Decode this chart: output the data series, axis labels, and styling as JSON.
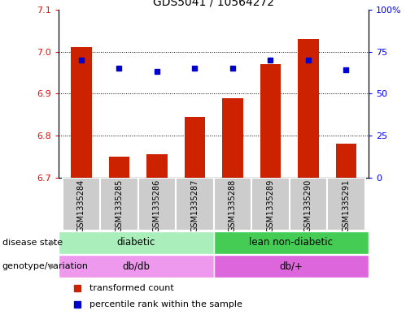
{
  "title": "GDS5041 / 10564272",
  "samples": [
    "GSM1335284",
    "GSM1335285",
    "GSM1335286",
    "GSM1335287",
    "GSM1335288",
    "GSM1335289",
    "GSM1335290",
    "GSM1335291"
  ],
  "red_values": [
    7.01,
    6.75,
    6.755,
    6.845,
    6.89,
    6.97,
    7.03,
    6.78
  ],
  "blue_percentile": [
    70,
    65,
    63,
    65,
    65,
    70,
    70,
    64
  ],
  "ylim_left": [
    6.7,
    7.1
  ],
  "ylim_right": [
    0,
    100
  ],
  "yticks_left": [
    6.7,
    6.8,
    6.9,
    7.0,
    7.1
  ],
  "yticks_right": [
    0,
    25,
    50,
    75,
    100
  ],
  "ytick_labels_right": [
    "0",
    "25",
    "50",
    "75",
    "100%"
  ],
  "bar_color": "#cc2200",
  "dot_color": "#0000cc",
  "disease_state_groups": [
    {
      "label": "diabetic",
      "start": 0,
      "end": 4,
      "color": "#aaeebb"
    },
    {
      "label": "lean non-diabetic",
      "start": 4,
      "end": 8,
      "color": "#44cc55"
    }
  ],
  "genotype_groups": [
    {
      "label": "db/db",
      "start": 0,
      "end": 4,
      "color": "#ee99ee"
    },
    {
      "label": "db/+",
      "start": 4,
      "end": 8,
      "color": "#dd66dd"
    }
  ],
  "row_labels": [
    "disease state",
    "genotype/variation"
  ],
  "legend_red": "transformed count",
  "legend_blue": "percentile rank within the sample",
  "sample_bg": "#cccccc",
  "plot_bg": "#ffffff"
}
